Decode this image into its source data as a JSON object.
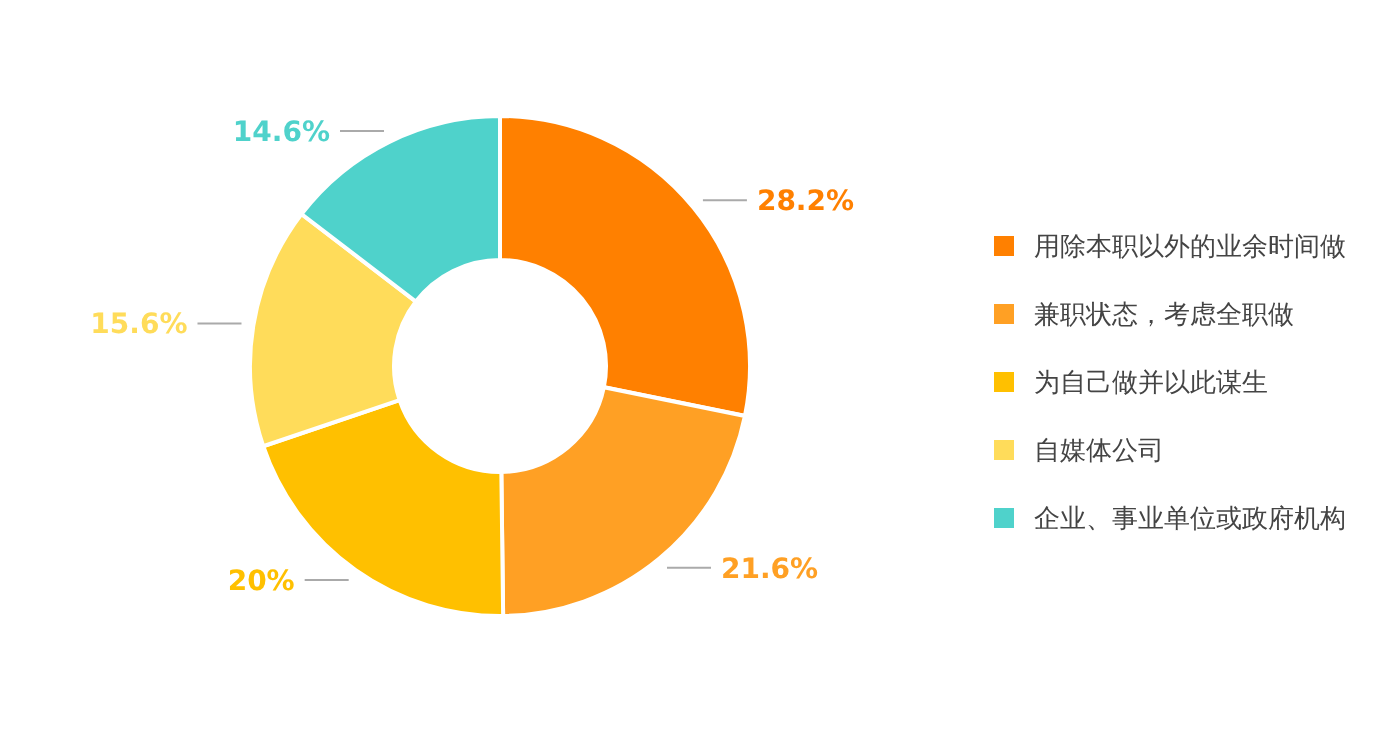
{
  "chart_data": {
    "type": "donut",
    "categories": [
      "用除本职以外的业余时间做",
      "兼职状态，考虑全职做",
      "为自己做并以此谋生",
      "自媒体公司",
      "企业、事业单位或政府机构"
    ],
    "values": [
      28.2,
      21.6,
      20,
      15.6,
      14.6
    ],
    "value_labels": [
      "28.2%",
      "21.6%",
      "20%",
      "15.6%",
      "14.6%"
    ],
    "colors": [
      "#ff8000",
      "#ffa024",
      "#ffc000",
      "#ffdc5a",
      "#4fd2cb"
    ],
    "legend": "right"
  }
}
